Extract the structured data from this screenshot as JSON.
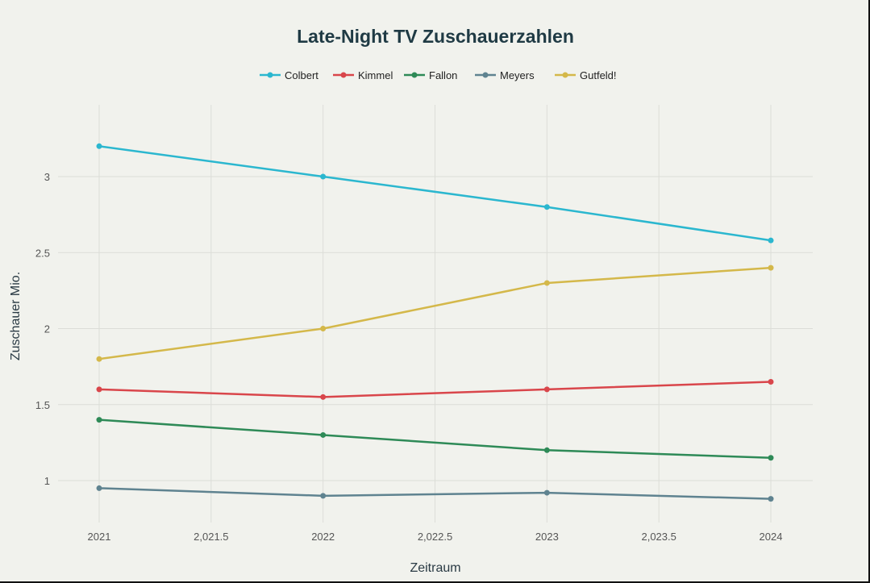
{
  "chart_data": {
    "type": "line",
    "title": "Late-Night TV Zuschauerzahlen",
    "xlabel": "Zeitraum",
    "ylabel": "Zuschauer Mio.",
    "x": [
      2021,
      2022,
      2023,
      2024
    ],
    "xticks": [
      "2021",
      "2,021.5",
      "2022",
      "2,022.5",
      "2023",
      "2,023.5",
      "2024"
    ],
    "xtick_values": [
      2021,
      2021.5,
      2022,
      2022.5,
      2023,
      2023.5,
      2024
    ],
    "yticks": [
      "1",
      "1.5",
      "2",
      "2.5",
      "3"
    ],
    "ytick_values": [
      1,
      1.5,
      2,
      2.5,
      3
    ],
    "xlim": [
      2020.82,
      2024.19
    ],
    "ylim": [
      0.7,
      3.45
    ],
    "grid": true,
    "legend_position": "top-center",
    "series": [
      {
        "name": "Colbert",
        "color": "#2bb7cf",
        "values": [
          3.2,
          3.0,
          2.8,
          2.58
        ]
      },
      {
        "name": "Kimmel",
        "color": "#d9464b",
        "values": [
          1.6,
          1.55,
          1.6,
          1.65
        ]
      },
      {
        "name": "Fallon",
        "color": "#2e8a57",
        "values": [
          1.4,
          1.3,
          1.2,
          1.15
        ]
      },
      {
        "name": "Meyers",
        "color": "#5f8390",
        "values": [
          0.95,
          0.9,
          0.92,
          0.88
        ]
      },
      {
        "name": "Gutfeld!",
        "color": "#d4b84a",
        "values": [
          1.8,
          2.0,
          2.3,
          2.4
        ]
      }
    ]
  }
}
